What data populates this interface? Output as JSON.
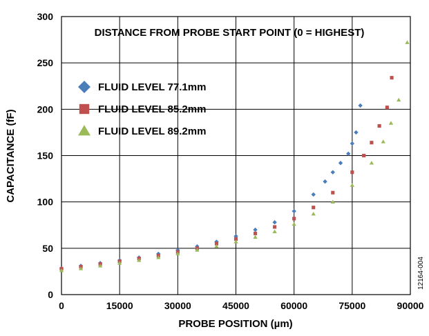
{
  "chart_data": {
    "type": "scatter",
    "annotation": "DISTANCE FROM PROBE START POINT (0 = HIGHEST)",
    "xlabel": "PROBE POSITION (µm)",
    "ylabel": "CAPACITANCE (fF)",
    "figure_id": "12164-004",
    "xlim": [
      0,
      90000
    ],
    "ylim": [
      0,
      300
    ],
    "xticks": [
      "0",
      "15000",
      "30000",
      "45000",
      "60000",
      "75000",
      "90000"
    ],
    "yticks": [
      "0",
      "50",
      "100",
      "150",
      "200",
      "250",
      "300"
    ],
    "grid": true,
    "legend_position": "top-left",
    "series": [
      {
        "name": "FLUID LEVEL 77.1mm",
        "marker": "diamond",
        "color": "#4a7ebb",
        "x": [
          0,
          5000,
          10000,
          15000,
          20000,
          25000,
          30000,
          35000,
          40000,
          45000,
          50000,
          55000,
          60000,
          65000,
          68000,
          70000,
          72000,
          74000,
          75000,
          76000,
          77100
        ],
        "y": [
          28,
          31,
          34,
          37,
          40,
          44,
          48,
          52,
          57,
          63,
          70,
          78,
          90,
          108,
          122,
          132,
          142,
          152,
          163,
          175,
          204
        ]
      },
      {
        "name": "FLUID LEVEL 85.2mm",
        "marker": "square",
        "color": "#c0504d",
        "x": [
          0,
          5000,
          10000,
          15000,
          20000,
          25000,
          30000,
          35000,
          40000,
          45000,
          50000,
          55000,
          60000,
          65000,
          70000,
          75000,
          78000,
          80000,
          82000,
          84000,
          85200
        ],
        "y": [
          28,
          30,
          33,
          36,
          39,
          42,
          46,
          50,
          55,
          60,
          66,
          73,
          82,
          94,
          110,
          132,
          150,
          164,
          182,
          202,
          234
        ]
      },
      {
        "name": "FLUID LEVEL 89.2mm",
        "marker": "triangle",
        "color": "#9bbb59",
        "x": [
          0,
          5000,
          10000,
          15000,
          20000,
          25000,
          30000,
          35000,
          40000,
          45000,
          50000,
          55000,
          60000,
          65000,
          70000,
          75000,
          80000,
          83000,
          85000,
          87000,
          89200
        ],
        "y": [
          26,
          28,
          31,
          34,
          37,
          40,
          44,
          48,
          52,
          57,
          62,
          68,
          76,
          87,
          100,
          118,
          142,
          165,
          185,
          210,
          272
        ]
      }
    ]
  }
}
